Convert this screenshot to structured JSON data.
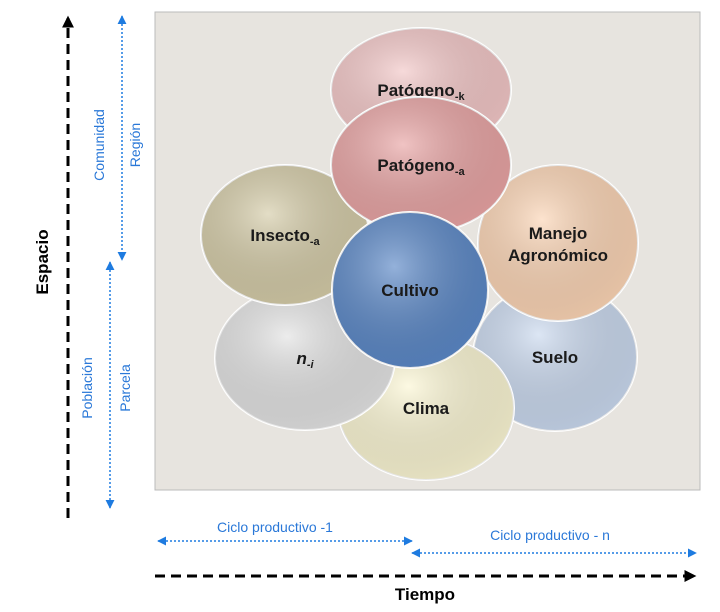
{
  "axes": {
    "vertical": {
      "label": "Espacio"
    },
    "horizontal": {
      "label": "Tiempo"
    }
  },
  "space_scales": {
    "upper": [
      "Comunidad",
      "Región"
    ],
    "lower": [
      "Población",
      "Parcela"
    ]
  },
  "time_scales": [
    "Ciclo productivo -1",
    "Ciclo productivo - n"
  ],
  "nodes": [
    {
      "label": "Patógeno",
      "sub": "-k"
    },
    {
      "label": "Suelo"
    },
    {
      "label": "Clima"
    },
    {
      "label": "n",
      "sub": "-i"
    },
    {
      "label": "Insecto",
      "sub": "-a"
    },
    {
      "lines": [
        "Manejo",
        "Agronómico"
      ]
    },
    {
      "label": "Patógeno",
      "sub": "-a"
    },
    {
      "label": "Cultivo"
    }
  ]
}
